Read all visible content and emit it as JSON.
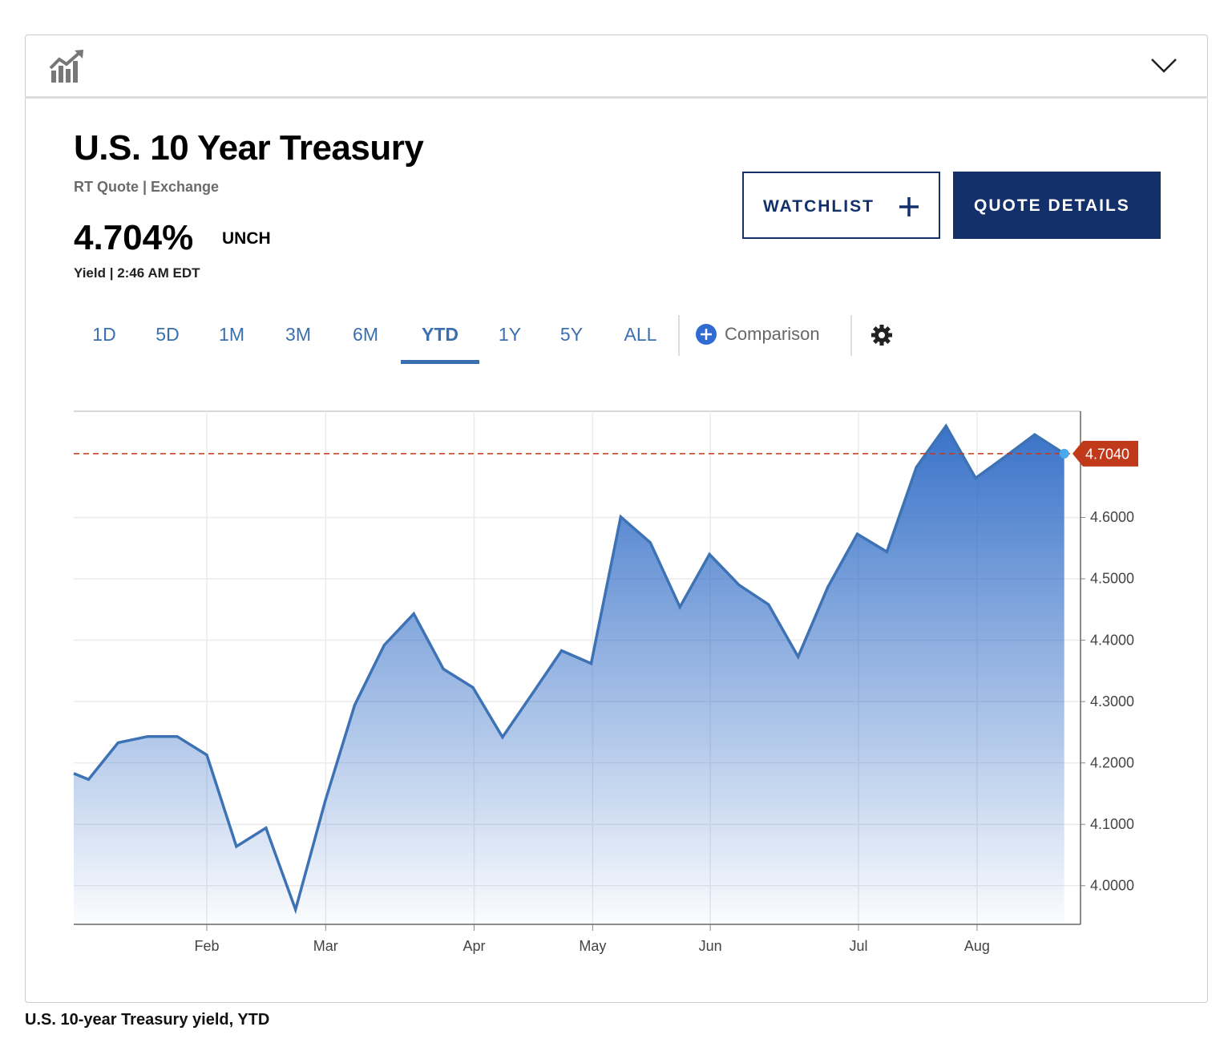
{
  "quote": {
    "title": "U.S. 10 Year Treasury",
    "subtitle": "RT Quote | Exchange",
    "price": "4.704%",
    "change": "UNCH",
    "meta": "Yield | 2:46 AM EDT"
  },
  "buttons": {
    "watchlist": "WATCHLIST",
    "quote_details": "QUOTE DETAILS"
  },
  "tabs": {
    "items": [
      "1D",
      "5D",
      "1M",
      "3M",
      "6M",
      "YTD",
      "1Y",
      "5Y",
      "ALL"
    ],
    "active": 5
  },
  "comparison": "Comparison",
  "chart_data": {
    "type": "area",
    "color": "#3d72b4",
    "x": [
      -0.5,
      0,
      1,
      2,
      3,
      4,
      5,
      6,
      7,
      8,
      9,
      10,
      11,
      12,
      13,
      14,
      15,
      16,
      17,
      18,
      19,
      20,
      21,
      22,
      23,
      24,
      25,
      26,
      27,
      28,
      29,
      30,
      31,
      32,
      33
    ],
    "values": [
      4.183,
      4.173,
      4.233,
      4.243,
      4.243,
      4.213,
      4.064,
      4.094,
      3.961,
      4.137,
      4.294,
      4.392,
      4.443,
      4.353,
      4.323,
      4.242,
      4.312,
      4.383,
      4.362,
      4.601,
      4.559,
      4.454,
      4.54,
      4.49,
      4.458,
      4.373,
      4.486,
      4.573,
      4.544,
      4.682,
      4.749,
      4.664,
      4.699,
      4.735,
      4.704
    ],
    "xlim": [
      -0.5,
      33.55
    ],
    "xticks": [
      {
        "value": 4,
        "label": "Feb"
      },
      {
        "value": 8.02,
        "label": "Mar"
      },
      {
        "value": 13.04,
        "label": "Apr"
      },
      {
        "value": 17.05,
        "label": "May"
      },
      {
        "value": 21.03,
        "label": "Jun"
      },
      {
        "value": 26.04,
        "label": "Jul"
      },
      {
        "value": 30.05,
        "label": "Aug"
      }
    ],
    "ylim": [
      3.937,
      4.773
    ],
    "yticks": [
      {
        "value": 4.0,
        "label": "4.0000"
      },
      {
        "value": 4.1,
        "label": "4.1000"
      },
      {
        "value": 4.2,
        "label": "4.2000"
      },
      {
        "value": 4.3,
        "label": "4.3000"
      },
      {
        "value": 4.4,
        "label": "4.4000"
      },
      {
        "value": 4.5,
        "label": "4.5000"
      },
      {
        "value": 4.6,
        "label": "4.6000"
      }
    ],
    "reference_line": {
      "value": 4.704,
      "label": "4.7040",
      "color": "#c0391b"
    },
    "grid": true
  },
  "caption": "U.S. 10-year Treasury yield, YTD"
}
